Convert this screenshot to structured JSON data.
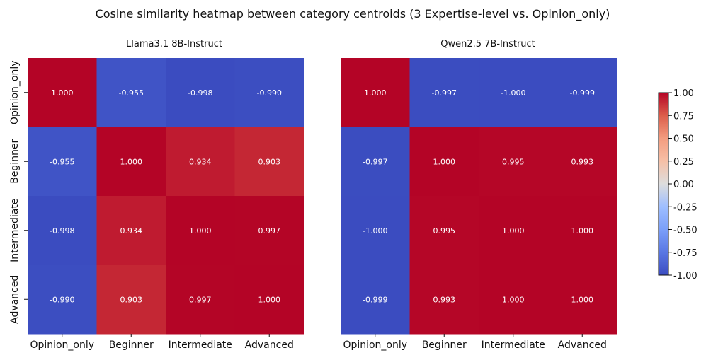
{
  "title": "Cosine similarity heatmap between category centroids (3 Expertise-level vs. Opinion_only)",
  "colorbar": {
    "colormap": "coolwarm",
    "low_color": "#3b4cc0",
    "mid_color": "#dddddd",
    "high_color": "#b40426",
    "ticks": [
      "1.00",
      "0.75",
      "0.50",
      "0.25",
      "0.00",
      "-0.25",
      "-0.50",
      "-0.75",
      "-1.00"
    ],
    "vmin": -1,
    "vmax": 1
  },
  "chart_data": [
    {
      "type": "heatmap",
      "title": "Llama3.1 8B-Instruct",
      "x_categories": [
        "Opinion_only",
        "Beginner",
        "Intermediate",
        "Advanced"
      ],
      "y_categories": [
        "Opinion_only",
        "Beginner",
        "Intermediate",
        "Advanced"
      ],
      "values": [
        [
          1.0,
          -0.955,
          -0.998,
          -0.99
        ],
        [
          -0.955,
          1.0,
          0.934,
          0.903
        ],
        [
          -0.998,
          0.934,
          1.0,
          0.997
        ],
        [
          -0.99,
          0.903,
          0.997,
          1.0
        ]
      ],
      "labels": [
        [
          "1.000",
          "-0.955",
          "-0.998",
          "-0.990"
        ],
        [
          "-0.955",
          "1.000",
          "0.934",
          "0.903"
        ],
        [
          "-0.998",
          "0.934",
          "1.000",
          "0.997"
        ],
        [
          "-0.990",
          "0.903",
          "0.997",
          "1.000"
        ]
      ]
    },
    {
      "type": "heatmap",
      "title": "Qwen2.5 7B-Instruct",
      "x_categories": [
        "Opinion_only",
        "Beginner",
        "Intermediate",
        "Advanced"
      ],
      "y_categories": [
        "Opinion_only",
        "Beginner",
        "Intermediate",
        "Advanced"
      ],
      "values": [
        [
          1.0,
          -0.997,
          -1.0,
          -0.999
        ],
        [
          -0.997,
          1.0,
          0.995,
          0.993
        ],
        [
          -1.0,
          0.995,
          1.0,
          1.0
        ],
        [
          -0.999,
          0.993,
          1.0,
          1.0
        ]
      ],
      "labels": [
        [
          "1.000",
          "-0.997",
          "-1.000",
          "-0.999"
        ],
        [
          "-0.997",
          "1.000",
          "0.995",
          "0.993"
        ],
        [
          "-1.000",
          "0.995",
          "1.000",
          "1.000"
        ],
        [
          "-0.999",
          "0.993",
          "1.000",
          "1.000"
        ]
      ]
    }
  ]
}
